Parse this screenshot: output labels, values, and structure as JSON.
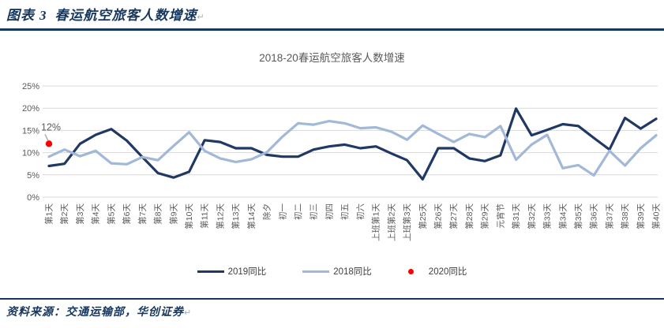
{
  "header": {
    "label": "图表",
    "number": "3",
    "title": "春运航空旅客人数增速",
    "return_mark": "↵"
  },
  "footer": {
    "source_text": "资料来源：交通运输部，华创证券",
    "return_mark": "↵"
  },
  "colors": {
    "accent_navy": "#17375e",
    "series_2019": "#1f3864",
    "series_2018": "#a2b8d8",
    "series_2020": "#ff0000",
    "gridline": "#d9d9d9",
    "axis_text": "#595959",
    "title_text": "#595959"
  },
  "chart_data": {
    "type": "line",
    "title": "2018-20春运航空旅客人数增速",
    "ylabel": "",
    "xlabel": "",
    "ylim": [
      0,
      25
    ],
    "grid": "horizontal",
    "legend_position": "bottom",
    "y_ticks": [
      "0%",
      "5%",
      "10%",
      "15%",
      "20%",
      "25%"
    ],
    "categories": [
      "第1天",
      "第2天",
      "第3天",
      "第4天",
      "第5天",
      "第6天",
      "第7天",
      "第8天",
      "第9天",
      "第10天",
      "第11天",
      "第12天",
      "第13天",
      "第14天",
      "除夕",
      "初一",
      "初二",
      "初三",
      "初四",
      "初五",
      "初六",
      "上班第1天",
      "上班第2天",
      "上班第3天",
      "第25天",
      "第26天",
      "第27天",
      "第28天",
      "第29天",
      "元宵节",
      "第31天",
      "第32天",
      "第33天",
      "第34天",
      "第35天",
      "第36天",
      "第37天",
      "第38天",
      "第39天",
      "第40天"
    ],
    "series": [
      {
        "name": "2019同比",
        "color": "#1f3864",
        "style": "line",
        "values": [
          7.0,
          7.5,
          12.0,
          14.0,
          15.3,
          12.7,
          9.0,
          5.4,
          4.4,
          5.7,
          12.8,
          12.4,
          11.0,
          11.0,
          9.5,
          9.1,
          9.1,
          10.7,
          11.4,
          11.8,
          11.0,
          11.4,
          9.8,
          8.3,
          4.0,
          11.0,
          11.0,
          8.7,
          8.1,
          9.4,
          19.9,
          13.9,
          15.1,
          16.4,
          16.0,
          13.3,
          10.7,
          17.8,
          15.4,
          17.6
        ]
      },
      {
        "name": "2018同比",
        "color": "#a2b8d8",
        "style": "line",
        "values": [
          9.1,
          10.7,
          9.2,
          10.4,
          7.6,
          7.4,
          9.0,
          8.3,
          11.5,
          14.6,
          10.4,
          8.7,
          7.9,
          8.5,
          10.1,
          13.6,
          16.6,
          16.3,
          17.1,
          16.6,
          15.5,
          15.7,
          14.7,
          12.9,
          16.1,
          14.2,
          12.4,
          14.2,
          13.5,
          16.0,
          8.4,
          11.8,
          14.0,
          6.5,
          7.2,
          4.9,
          10.4,
          7.1,
          11.0,
          13.9
        ]
      },
      {
        "name": "2020同比",
        "color": "#ff0000",
        "style": "point",
        "points": [
          {
            "category_index": 0,
            "value": 12
          }
        ]
      }
    ],
    "annotation": {
      "text": "12%",
      "category_index": 0,
      "value": 12
    }
  }
}
